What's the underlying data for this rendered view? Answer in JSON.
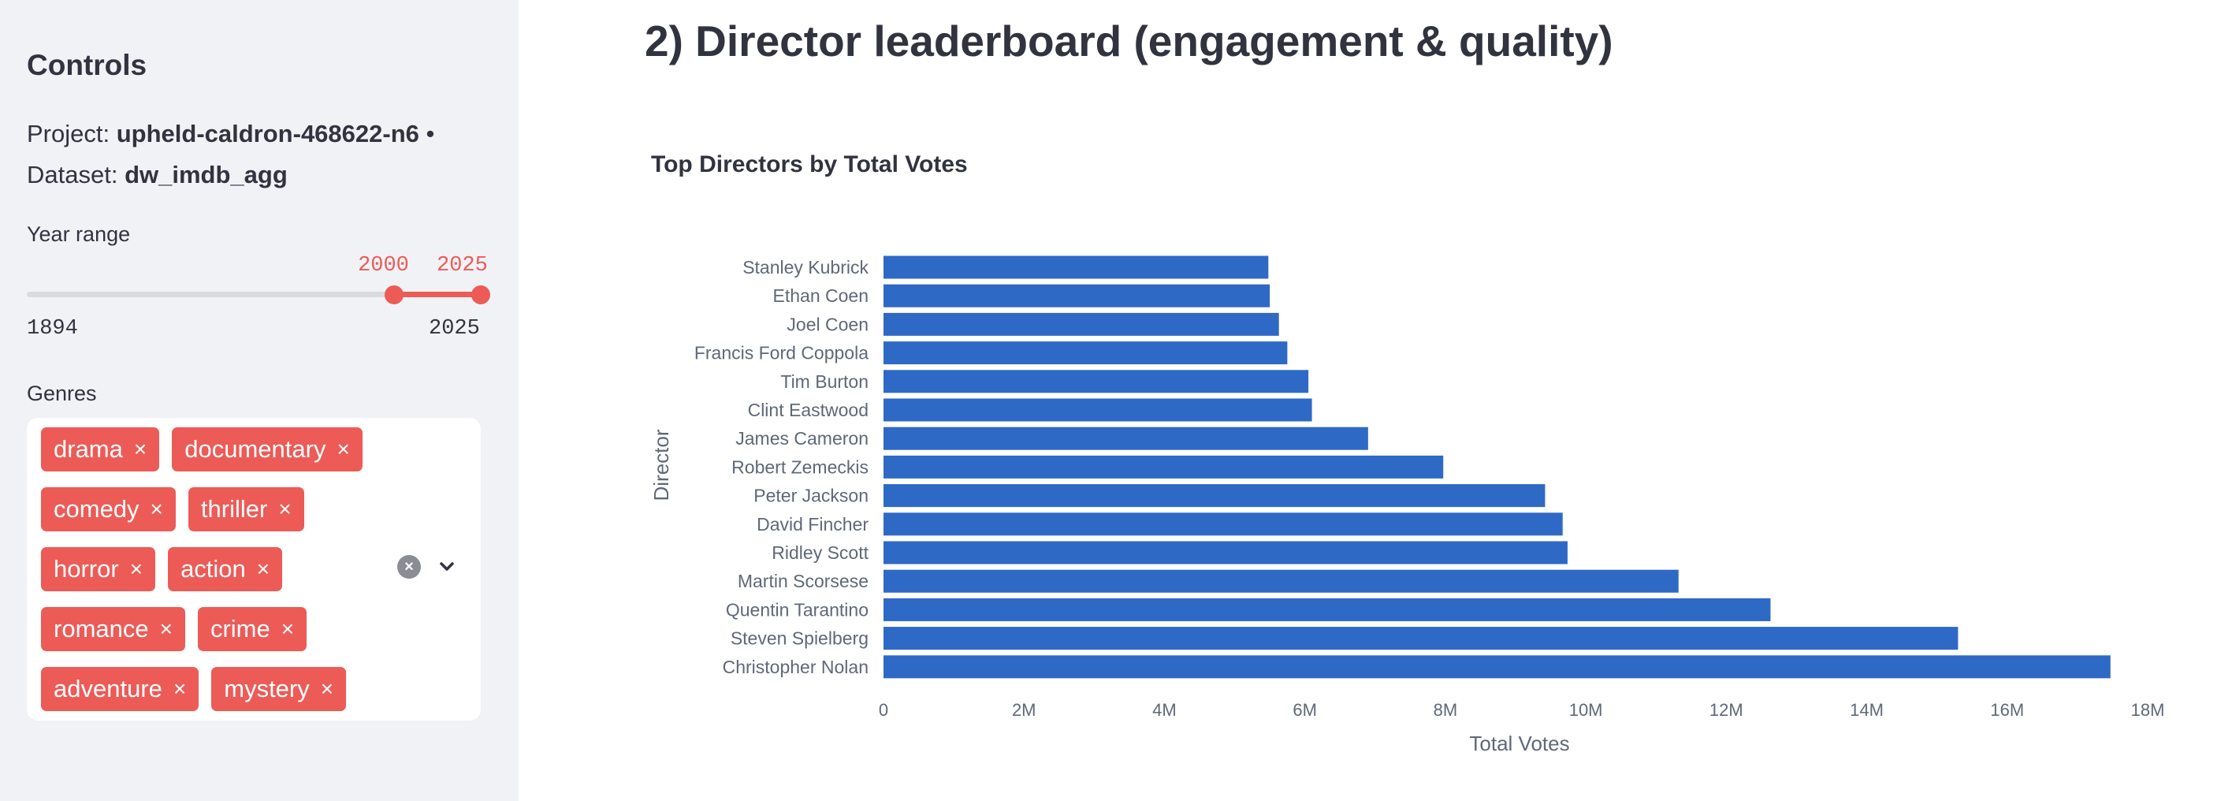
{
  "sidebar": {
    "title": "Controls",
    "project_label": "Project:",
    "project_value": "upheld-caldron-468622-n6",
    "separator": "•",
    "dataset_label": "Dataset:",
    "dataset_value": "dw_imdb_agg",
    "year_range": {
      "label": "Year range",
      "min": 1894,
      "max": 2025,
      "low": 2000,
      "high": 2025,
      "min_label": "1894",
      "max_label": "2025",
      "low_label": "2000",
      "high_label": "2025"
    },
    "genres": {
      "label": "Genres",
      "chips": [
        "drama",
        "documentary",
        "comedy",
        "thriller",
        "horror",
        "action",
        "romance",
        "crime",
        "adventure",
        "mystery"
      ],
      "remove_glyph": "×"
    }
  },
  "main": {
    "title": "2) Director leaderboard (engagement & quality)"
  },
  "colors": {
    "accent": "#ec5b56",
    "bar": "#2e69c6",
    "sidebar_bg": "#f0f2f6",
    "text": "#31333f",
    "axis_text": "#5f6878"
  },
  "icons": {
    "clear": "clear-all-icon",
    "dropdown": "chevron-down-icon",
    "remove": "close-icon"
  },
  "chart_data": {
    "type": "bar",
    "orientation": "horizontal",
    "title": "Top Directors by Total Votes",
    "xlabel": "Total Votes",
    "ylabel": "Director",
    "xlim": [
      0,
      18000000
    ],
    "xticks": [
      0,
      2000000,
      4000000,
      6000000,
      8000000,
      10000000,
      12000000,
      14000000,
      16000000,
      18000000
    ],
    "xtick_labels": [
      "0",
      "2M",
      "4M",
      "6M",
      "8M",
      "10M",
      "12M",
      "14M",
      "16M",
      "18M"
    ],
    "grid": false,
    "categories": [
      "Stanley Kubrick",
      "Ethan Coen",
      "Joel Coen",
      "Francis Ford Coppola",
      "Tim Burton",
      "Clint Eastwood",
      "James Cameron",
      "Robert Zemeckis",
      "Peter Jackson",
      "David Fincher",
      "Ridley Scott",
      "Martin Scorsese",
      "Quentin Tarantino",
      "Steven Spielberg",
      "Christopher Nolan"
    ],
    "values": [
      5480000,
      5500000,
      5630000,
      5750000,
      6050000,
      6100000,
      6900000,
      7970000,
      9420000,
      9670000,
      9740000,
      11320000,
      12630000,
      15300000,
      17470000
    ]
  }
}
